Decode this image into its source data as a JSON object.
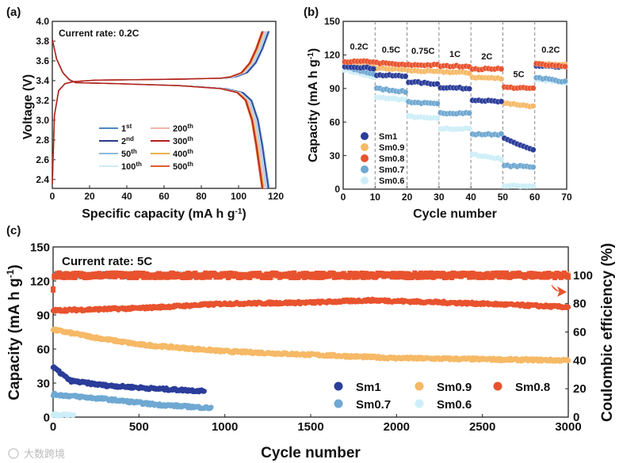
{
  "chart_data": [
    {
      "panel": "(a)",
      "type": "line",
      "title": "",
      "annotation": "Current rate: 0.2C",
      "xlabel": "Specific capacity (mA h g",
      "xlabel_sup": "-1",
      "xlabel_end": ")",
      "ylabel": "Voltage (V)",
      "xlim": [
        0,
        120
      ],
      "ylim": [
        2.31,
        4.0
      ],
      "xticks": [
        0,
        20,
        40,
        60,
        80,
        100,
        120
      ],
      "yticks": [
        2.4,
        2.6,
        2.8,
        3.0,
        3.2,
        3.4,
        3.6,
        3.8,
        4.0
      ],
      "legend_position": "bottom-center",
      "charge_profile_fraction": [
        0,
        0.01,
        0.03,
        0.06,
        0.1,
        0.2,
        0.4,
        0.6,
        0.8,
        0.85,
        0.9,
        0.94,
        0.97,
        1.0
      ],
      "charge_profile_voltage": [
        2.35,
        3.05,
        3.3,
        3.37,
        3.39,
        3.405,
        3.41,
        3.415,
        3.425,
        3.44,
        3.48,
        3.58,
        3.72,
        3.9
      ],
      "discharge_profile_fraction": [
        0,
        0.02,
        0.05,
        0.08,
        0.11,
        0.3,
        0.6,
        0.8,
        0.88,
        0.92,
        0.95,
        0.97,
        1.0
      ],
      "discharge_profile_voltage": [
        3.82,
        3.62,
        3.48,
        3.41,
        3.38,
        3.37,
        3.35,
        3.32,
        3.28,
        3.2,
        3.0,
        2.75,
        2.3
      ],
      "series": [
        {
          "name": "1",
          "sup": "st",
          "color": "#4f86c6",
          "charge_capacity": 116.5,
          "discharge_capacity": 116.5
        },
        {
          "name": "2",
          "sup": "nd",
          "color": "#2a3a8e",
          "charge_capacity": 116,
          "discharge_capacity": 116
        },
        {
          "name": "50",
          "sup": "th",
          "color": "#8fb9d9",
          "charge_capacity": 115,
          "discharge_capacity": 115
        },
        {
          "name": "100",
          "sup": "th",
          "color": "#cdeaf6",
          "charge_capacity": 114.5,
          "discharge_capacity": 114.5
        },
        {
          "name": "200",
          "sup": "th",
          "color": "#f2b4ab",
          "charge_capacity": 114,
          "discharge_capacity": 114
        },
        {
          "name": "300",
          "sup": "th",
          "color": "#b01e1e",
          "charge_capacity": 113,
          "discharge_capacity": 113
        },
        {
          "name": "400",
          "sup": "th",
          "color": "#e8b347",
          "charge_capacity": 113.5,
          "discharge_capacity": 113.5
        },
        {
          "name": "500",
          "sup": "th",
          "color": "#e35b2e",
          "charge_capacity": 112.5,
          "discharge_capacity": 112.5
        }
      ]
    },
    {
      "panel": "(b)",
      "type": "scatter",
      "xlabel": "Cycle number",
      "ylabel": "Capacity (mA h g",
      "ylabel_sup": "-1",
      "ylabel_end": ")",
      "xlim": [
        0,
        70
      ],
      "ylim": [
        0,
        150
      ],
      "xticks": [
        0,
        10,
        20,
        30,
        40,
        50,
        60,
        70
      ],
      "yticks": [
        0,
        30,
        60,
        90,
        120,
        150
      ],
      "dividers": [
        10,
        20,
        30,
        40,
        50,
        60
      ],
      "rate_labels": [
        {
          "label": "0.2C",
          "cycle": 5,
          "capacity": 125
        },
        {
          "label": "0.5C",
          "cycle": 15,
          "capacity": 122
        },
        {
          "label": "0.75C",
          "cycle": 25,
          "capacity": 121
        },
        {
          "label": "1C",
          "cycle": 35,
          "capacity": 118
        },
        {
          "label": "2C",
          "cycle": 45,
          "capacity": 116
        },
        {
          "label": "5C",
          "cycle": 55,
          "capacity": 100
        },
        {
          "label": "0.2C",
          "cycle": 65,
          "capacity": 122
        }
      ],
      "legend_position": "bottom-left",
      "segment_cycles": [
        [
          1,
          10
        ],
        [
          11,
          20
        ],
        [
          21,
          30
        ],
        [
          31,
          40
        ],
        [
          41,
          50
        ],
        [
          51,
          60
        ],
        [
          61,
          70
        ]
      ],
      "series": [
        {
          "name": "Sm0.6",
          "color": "#cdeef8",
          "segments": [
            [
              107,
              100
            ],
            [
              82,
              80
            ],
            [
              65,
              63
            ],
            [
              54,
              54
            ],
            [
              31,
              27
            ],
            [
              3,
              3
            ],
            [
              98,
              95
            ]
          ]
        },
        {
          "name": "Sm0.7",
          "color": "#6fa8d2",
          "segments": [
            [
              109,
              103
            ],
            [
              90,
              87
            ],
            [
              78,
              76
            ],
            [
              68,
              68
            ],
            [
              49,
              49
            ],
            [
              21,
              20
            ],
            [
              100,
              96
            ]
          ]
        },
        {
          "name": "Sm0.9",
          "color": "#f6b966",
          "segments": [
            [
              112,
              111
            ],
            [
              108,
              107
            ],
            [
              106,
              105
            ],
            [
              105,
              104
            ],
            [
              100,
              99
            ],
            [
              77,
              74
            ],
            [
              112,
              111
            ]
          ]
        },
        {
          "name": "Sm1",
          "color": "#2b3d9a",
          "segments": [
            [
              110,
              108
            ],
            [
              102,
              101
            ],
            [
              96,
              94
            ],
            [
              91,
              90
            ],
            [
              80,
              78
            ],
            [
              45,
              35
            ],
            [
              110,
              109
            ]
          ]
        },
        {
          "name": "Sm0.8",
          "color": "#e8532e",
          "segments": [
            [
              114,
              114
            ],
            [
              113,
              111
            ],
            [
              111,
              111
            ],
            [
              110,
              110
            ],
            [
              107,
              108
            ],
            [
              91,
              90
            ],
            [
              112,
              110
            ]
          ]
        }
      ]
    },
    {
      "panel": "(c)",
      "type": "scatter",
      "annotation": "Current rate: 5C",
      "xlabel": "Cycle number",
      "ylabel": "Capacity (mA h g",
      "ylabel_sup": "-1",
      "ylabel_end": ")",
      "y2label": "Coulombic efficiency (%)",
      "xlim": [
        0,
        3000
      ],
      "ylim": [
        0,
        150
      ],
      "y2lim": [
        0,
        120
      ],
      "xticks": [
        0,
        500,
        1000,
        1500,
        2000,
        2500,
        3000
      ],
      "yticks": [
        0,
        30,
        60,
        90,
        120,
        150
      ],
      "y2ticks": [
        0,
        20,
        40,
        60,
        80,
        100
      ],
      "legend_position": "bottom-right",
      "series": [
        {
          "name": "Sm0.8",
          "color": "#e8532e",
          "points": [
            [
              0,
              94
            ],
            [
              500,
              96
            ],
            [
              1000,
              100
            ],
            [
              1500,
              101
            ],
            [
              1850,
              103
            ],
            [
              2500,
              100
            ],
            [
              3000,
              97
            ]
          ],
          "ce": 100
        },
        {
          "name": "Sm0.9",
          "color": "#f6b966",
          "points": [
            [
              0,
              77
            ],
            [
              250,
              70
            ],
            [
              500,
              64
            ],
            [
              1000,
              58
            ],
            [
              1500,
              55
            ],
            [
              2000,
              52
            ],
            [
              3000,
              50
            ]
          ],
          "ce": 100
        },
        {
          "name": "Sm1",
          "color": "#2b3d9a",
          "points": [
            [
              0,
              44
            ],
            [
              100,
              32
            ],
            [
              300,
              28
            ],
            [
              600,
              25
            ],
            [
              880,
              23
            ]
          ],
          "ce": 100
        },
        {
          "name": "Sm0.7",
          "color": "#6fa8d2",
          "points": [
            [
              0,
              20
            ],
            [
              300,
              16
            ],
            [
              600,
              11
            ],
            [
              920,
              8
            ]
          ],
          "ce": 100
        },
        {
          "name": "Sm0.6",
          "color": "#cdeef8",
          "points": [
            [
              0,
              2
            ],
            [
              120,
              2
            ]
          ],
          "ce": 100
        }
      ],
      "legend_order": [
        "Sm1",
        "Sm0.9",
        "Sm0.8",
        "Sm0.7",
        "Sm0.6"
      ]
    }
  ],
  "watermark": "大数跨境"
}
